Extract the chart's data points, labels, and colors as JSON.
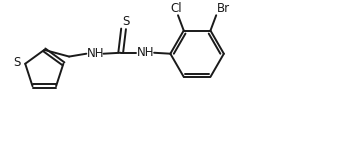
{
  "bg_color": "#ffffff",
  "line_color": "#1a1a1a",
  "line_width": 1.4,
  "font_size": 8.5,
  "labels": {
    "S_thiophene": "S",
    "Cl": "Cl",
    "Br": "Br",
    "NH1": "NH",
    "NH2": "NH",
    "S_thiourea": "S"
  }
}
